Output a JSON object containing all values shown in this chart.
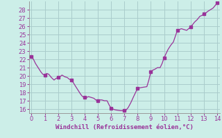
{
  "title": "",
  "xlabel": "Windchill (Refroidissement éolien,°C)",
  "ylabel": "",
  "background_color": "#cceee8",
  "line_color": "#993399",
  "marker_color": "#993399",
  "grid_color": "#aacccc",
  "axis_color": "#999999",
  "tick_label_color": "#993399",
  "xlabel_color": "#993399",
  "xlim": [
    -0.2,
    14.2
  ],
  "ylim": [
    15.5,
    29.0
  ],
  "xticks": [
    0,
    1,
    2,
    3,
    4,
    5,
    6,
    7,
    8,
    9,
    10,
    11,
    12,
    13,
    14
  ],
  "yticks": [
    16,
    17,
    18,
    19,
    20,
    21,
    22,
    23,
    24,
    25,
    26,
    27,
    28
  ],
  "x": [
    0.0,
    0.15,
    0.3,
    0.5,
    0.7,
    0.85,
    1.0,
    1.15,
    1.3,
    1.5,
    1.7,
    1.85,
    2.0,
    2.15,
    2.3,
    2.5,
    2.7,
    2.85,
    3.0,
    3.15,
    3.3,
    3.5,
    3.7,
    3.85,
    4.0,
    4.15,
    4.3,
    4.5,
    4.7,
    4.85,
    5.0,
    5.15,
    5.3,
    5.5,
    5.7,
    5.85,
    6.0,
    6.15,
    6.3,
    6.5,
    6.7,
    6.85,
    7.0,
    7.15,
    7.3,
    7.5,
    7.7,
    7.85,
    8.0,
    8.15,
    8.3,
    8.5,
    8.7,
    8.85,
    9.0,
    9.15,
    9.3,
    9.5,
    9.7,
    9.85,
    10.0,
    10.15,
    10.3,
    10.5,
    10.7,
    10.85,
    11.0,
    11.15,
    11.3,
    11.5,
    11.7,
    11.85,
    12.0,
    12.15,
    12.3,
    12.5,
    12.7,
    12.85,
    13.0,
    13.15,
    13.3,
    13.5,
    13.7,
    13.85,
    14.0
  ],
  "y": [
    22.3,
    22.0,
    21.5,
    21.0,
    20.5,
    20.2,
    20.1,
    20.3,
    20.2,
    19.8,
    19.5,
    19.7,
    19.8,
    19.9,
    20.1,
    19.9,
    19.8,
    19.6,
    19.5,
    19.2,
    18.8,
    18.3,
    17.8,
    17.5,
    17.4,
    17.4,
    17.5,
    17.4,
    17.3,
    17.1,
    17.0,
    17.1,
    17.1,
    17.0,
    17.0,
    16.5,
    16.1,
    16.0,
    15.9,
    15.85,
    15.8,
    15.8,
    15.8,
    15.9,
    16.2,
    16.8,
    17.5,
    18.0,
    18.5,
    18.55,
    18.6,
    18.65,
    18.7,
    19.5,
    20.5,
    20.7,
    20.8,
    21.0,
    21.0,
    21.5,
    22.2,
    22.7,
    23.2,
    23.7,
    24.1,
    24.8,
    25.5,
    25.6,
    25.7,
    25.6,
    25.5,
    25.7,
    25.9,
    26.2,
    26.5,
    26.8,
    27.2,
    27.3,
    27.5,
    27.6,
    27.8,
    28.0,
    28.2,
    28.5,
    28.8
  ],
  "marker_x": [
    0,
    1,
    2,
    3,
    4,
    5,
    6,
    7,
    8,
    9,
    10,
    11,
    12,
    13,
    14
  ],
  "marker_y": [
    22.3,
    20.1,
    19.8,
    19.5,
    17.4,
    17.0,
    16.1,
    15.8,
    18.5,
    20.5,
    22.2,
    25.5,
    25.9,
    27.5,
    28.8
  ]
}
